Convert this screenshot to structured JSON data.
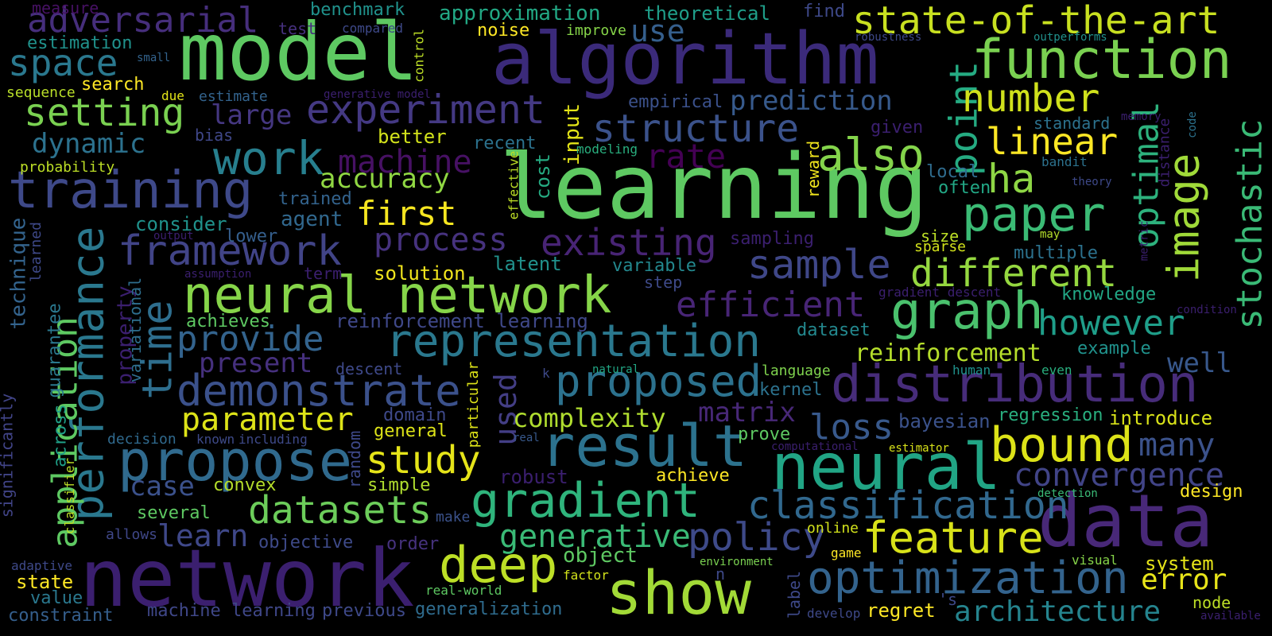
{
  "palette": {
    "background": "#000000"
  },
  "words": [
    {
      "text": "learning",
      "color": "#5ec962"
    },
    {
      "text": "model",
      "color": "#5ec962"
    },
    {
      "text": "algorithm",
      "color": "#3b2a7a"
    },
    {
      "text": "network",
      "color": "#3b1f6f"
    },
    {
      "text": "data",
      "color": "#482878"
    },
    {
      "text": "neural",
      "color": "#21a585"
    },
    {
      "text": "function",
      "color": "#7ad151"
    },
    {
      "text": "show",
      "color": "#a2da37"
    },
    {
      "text": "neural network",
      "color": "#86d549"
    },
    {
      "text": "result",
      "color": "#2c728e"
    },
    {
      "text": "propose",
      "color": "#306a8e"
    },
    {
      "text": "state-of-the-art",
      "color": "#c8e020"
    },
    {
      "text": "training",
      "color": "#3e4989"
    },
    {
      "text": "distribution",
      "color": "#472c7a"
    },
    {
      "text": "representation",
      "color": "#2a788e"
    },
    {
      "text": "optimization",
      "color": "#33638d"
    },
    {
      "text": "performance",
      "color": "#2a788e"
    },
    {
      "text": "gradient",
      "color": "#2fb47c"
    },
    {
      "text": "bound",
      "color": "#dde318"
    },
    {
      "text": "graph",
      "color": "#4ac16d"
    },
    {
      "text": "paper",
      "color": "#3bbb75"
    },
    {
      "text": "deep",
      "color": "#bddf26"
    },
    {
      "text": "experiment",
      "color": "#443983"
    },
    {
      "text": "image",
      "color": "#a0da39"
    },
    {
      "text": "proposed",
      "color": "#2c728e"
    },
    {
      "text": "demonstrate",
      "color": "#3b518b"
    },
    {
      "text": "time",
      "color": "#2e6e8e"
    },
    {
      "text": "framework",
      "color": "#414487"
    },
    {
      "text": "work",
      "color": "#277f8e"
    },
    {
      "text": "classification",
      "color": "#31688e"
    },
    {
      "text": "application",
      "color": "#5ec962"
    },
    {
      "text": "datasets",
      "color": "#6ccd5a"
    },
    {
      "text": "feature",
      "color": "#d8e219"
    },
    {
      "text": "structure",
      "color": "#3b528b"
    },
    {
      "text": "policy",
      "color": "#3e4a89"
    },
    {
      "text": "sample",
      "color": "#3f4788"
    },
    {
      "text": "point",
      "color": "#25ab82"
    },
    {
      "text": "different",
      "color": "#95d840"
    },
    {
      "text": "study",
      "color": "#e5e419"
    },
    {
      "text": "space",
      "color": "#2a788e"
    },
    {
      "text": "setting",
      "color": "#7ad151"
    },
    {
      "text": "also",
      "color": "#84d44b"
    },
    {
      "text": "however",
      "color": "#1f9e89"
    },
    {
      "text": "convergence",
      "color": "#414487"
    },
    {
      "text": "efficient",
      "color": "#482576"
    },
    {
      "text": "stochastic",
      "color": "#3aba76"
    },
    {
      "text": "number",
      "color": "#d0e11c"
    },
    {
      "text": "ha",
      "color": "#8ed645"
    },
    {
      "text": "existing",
      "color": "#482475"
    },
    {
      "text": "linear",
      "color": "#fde725"
    },
    {
      "text": "optimal",
      "color": "#2db27d"
    },
    {
      "text": "parameter",
      "color": "#dde318"
    },
    {
      "text": "adversarial",
      "color": "#462e7c"
    },
    {
      "text": "process",
      "color": "#46327e"
    },
    {
      "text": "provide",
      "color": "#33638d"
    },
    {
      "text": "first",
      "color": "#f6e620"
    },
    {
      "text": "generative",
      "color": "#3aba76"
    },
    {
      "text": "loss",
      "color": "#38598c"
    },
    {
      "text": "used",
      "color": "#433e85"
    },
    {
      "text": "machine",
      "color": "#471164"
    },
    {
      "text": "rate",
      "color": "#440154"
    },
    {
      "text": "many",
      "color": "#3b528b"
    },
    {
      "text": "dynamic",
      "color": "#2c728e"
    },
    {
      "text": "reinforcement",
      "color": "#b5de2b"
    },
    {
      "text": "accuracy",
      "color": "#90d743"
    },
    {
      "text": "large",
      "color": "#453781"
    },
    {
      "text": "prediction",
      "color": "#375a8c"
    },
    {
      "text": "use",
      "color": "#355f8d"
    },
    {
      "text": "complexity",
      "color": "#b0dd2f"
    },
    {
      "text": "error",
      "color": "#e7e419"
    },
    {
      "text": "matrix",
      "color": "#482878"
    },
    {
      "text": "architecture",
      "color": "#25848e"
    },
    {
      "text": "case",
      "color": "#3b518b"
    },
    {
      "text": "learn",
      "color": "#3f4889"
    },
    {
      "text": "present",
      "color": "#46307e"
    },
    {
      "text": "well",
      "color": "#38588c"
    },
    {
      "text": "approximation",
      "color": "#22a884"
    },
    {
      "text": "system",
      "color": "#e5e419"
    },
    {
      "text": "agent",
      "color": "#31688e"
    },
    {
      "text": "object",
      "color": "#5ec962"
    },
    {
      "text": "input",
      "color": "#e3e418"
    },
    {
      "text": "cost",
      "color": "#25ab82"
    },
    {
      "text": "technique",
      "color": "#33638d"
    },
    {
      "text": "property",
      "color": "#3b1f6f"
    },
    {
      "text": "variational",
      "color": "#2e6e8e"
    },
    {
      "text": "guarantee",
      "color": "#2a788e"
    },
    {
      "text": "across",
      "color": "#1fa088"
    },
    {
      "text": "significantly",
      "color": "#414487"
    },
    {
      "text": "better",
      "color": "#d2e21b"
    },
    {
      "text": "solution",
      "color": "#f1e51d"
    },
    {
      "text": "reinforcement learning",
      "color": "#3f4889"
    },
    {
      "text": "lower",
      "color": "#355f8d"
    },
    {
      "text": "consider",
      "color": "#20928c"
    },
    {
      "text": "trained",
      "color": "#33638d"
    },
    {
      "text": "dataset",
      "color": "#23888e"
    },
    {
      "text": "kernel",
      "color": "#2c728e"
    },
    {
      "text": "language",
      "color": "#7fd34e"
    },
    {
      "text": "regression",
      "color": "#29af7f"
    },
    {
      "text": "introduce",
      "color": "#d8e219"
    },
    {
      "text": "example",
      "color": "#20928c"
    },
    {
      "text": "bayesian",
      "color": "#3b528b"
    },
    {
      "text": "prove",
      "color": "#5ec962"
    },
    {
      "text": "domain",
      "color": "#3e4989"
    },
    {
      "text": "general",
      "color": "#dde318"
    },
    {
      "text": "convex",
      "color": "#b5de2b"
    },
    {
      "text": "simple",
      "color": "#b0dd2f"
    },
    {
      "text": "several",
      "color": "#5ec962"
    },
    {
      "text": "objective",
      "color": "#3e4a89"
    },
    {
      "text": "order",
      "color": "#46327e"
    },
    {
      "text": "generalization",
      "color": "#2f6c8e"
    },
    {
      "text": "previous",
      "color": "#3e4989"
    },
    {
      "text": "machine learning",
      "color": "#3f4788"
    },
    {
      "text": "state",
      "color": "#fde725"
    },
    {
      "text": "value",
      "color": "#2a788e"
    },
    {
      "text": "constraint",
      "color": "#355f8d"
    },
    {
      "text": "adaptive",
      "color": "#3e4989"
    },
    {
      "text": "allows",
      "color": "#3f4788"
    },
    {
      "text": "decision",
      "color": "#306a8e"
    },
    {
      "text": "known",
      "color": "#3e4a89"
    },
    {
      "text": "including",
      "color": "#3e4989"
    },
    {
      "text": "classifier",
      "color": "#bddf26"
    },
    {
      "text": "random",
      "color": "#3e4989"
    },
    {
      "text": "particular",
      "color": "#dde318"
    },
    {
      "text": "make",
      "color": "#3b528b"
    },
    {
      "text": "real",
      "color": "#38598c"
    },
    {
      "text": "robust",
      "color": "#3b1f6f"
    },
    {
      "text": "achieve",
      "color": "#fde725"
    },
    {
      "text": "descent",
      "color": "#3e4989"
    },
    {
      "text": "achieves",
      "color": "#5ec962"
    },
    {
      "text": "term",
      "color": "#3b1f6f"
    },
    {
      "text": "latent",
      "color": "#21918c"
    },
    {
      "text": "variable",
      "color": "#23888e"
    },
    {
      "text": "step",
      "color": "#3e4a89"
    },
    {
      "text": "sampling",
      "color": "#3b1f6f"
    },
    {
      "text": "size",
      "color": "#bddf26"
    },
    {
      "text": "sparse",
      "color": "#d2e21b"
    },
    {
      "text": "multiple",
      "color": "#2c728e"
    },
    {
      "text": "knowledge",
      "color": "#22a785"
    },
    {
      "text": "gradient descent",
      "color": "#3b1f6f"
    },
    {
      "text": "local",
      "color": "#2f6c8e"
    },
    {
      "text": "often",
      "color": "#22a785"
    },
    {
      "text": "reward",
      "color": "#f1e51d"
    },
    {
      "text": "given",
      "color": "#3b1f6f"
    },
    {
      "text": "empirical",
      "color": "#3b518b"
    },
    {
      "text": "recent",
      "color": "#2c728e"
    },
    {
      "text": "modeling",
      "color": "#29af7f"
    },
    {
      "text": "effective",
      "color": "#bddf26"
    },
    {
      "text": "benchmark",
      "color": "#20928c"
    },
    {
      "text": "theoretical",
      "color": "#1f9e89"
    },
    {
      "text": "find",
      "color": "#3e4989"
    },
    {
      "text": "noise",
      "color": "#fde725"
    },
    {
      "text": "improve",
      "color": "#86d549"
    },
    {
      "text": "compared",
      "color": "#3e4989"
    },
    {
      "text": "control",
      "color": "#bddf26"
    },
    {
      "text": "test",
      "color": "#46307e"
    },
    {
      "text": "measure",
      "color": "#471164"
    },
    {
      "text": "estimation",
      "color": "#20928c"
    },
    {
      "text": "small",
      "color": "#33638d"
    },
    {
      "text": "sequence",
      "color": "#b8de29"
    },
    {
      "text": "search",
      "color": "#fde725"
    },
    {
      "text": "due",
      "color": "#e3e418"
    },
    {
      "text": "estimate",
      "color": "#33638d"
    },
    {
      "text": "generative model",
      "color": "#3b1f6f"
    },
    {
      "text": "bias",
      "color": "#3f4788"
    },
    {
      "text": "probability",
      "color": "#bddf26"
    },
    {
      "text": "output",
      "color": "#3b1f6f"
    },
    {
      "text": "learned",
      "color": "#3e4989"
    },
    {
      "text": "assumption",
      "color": "#3b1f6f"
    },
    {
      "text": "robustness",
      "color": "#3e4989"
    },
    {
      "text": "outperforms",
      "color": "#21918c"
    },
    {
      "text": "memory",
      "color": "#3b1f6f"
    },
    {
      "text": "standard",
      "color": "#2c728e"
    },
    {
      "text": "code",
      "color": "#2c728e"
    },
    {
      "text": "distance",
      "color": "#3b1f6f"
    },
    {
      "text": "bandit",
      "color": "#2c728e"
    },
    {
      "text": "theory",
      "color": "#3e4989"
    },
    {
      "text": "may",
      "color": "#b5de2b"
    },
    {
      "text": "metric",
      "color": "#3b1f6f"
    },
    {
      "text": "condition",
      "color": "#3b1f6f"
    },
    {
      "text": "human",
      "color": "#20928c"
    },
    {
      "text": "even",
      "color": "#29af7f"
    },
    {
      "text": "natural",
      "color": "#22a785"
    },
    {
      "text": "k",
      "color": "#3e4989"
    },
    {
      "text": "computational",
      "color": "#3b1f6f"
    },
    {
      "text": "estimator",
      "color": "#d8e219"
    },
    {
      "text": "detection",
      "color": "#3aba76"
    },
    {
      "text": "design",
      "color": "#fde725"
    },
    {
      "text": "online",
      "color": "#d2e21b"
    },
    {
      "text": "game",
      "color": "#fde725"
    },
    {
      "text": "environment",
      "color": "#7ad151"
    },
    {
      "text": "visual",
      "color": "#86d549"
    },
    {
      "text": "n",
      "color": "#3e4989"
    },
    {
      "text": "factor",
      "color": "#d2e21b"
    },
    {
      "text": "real-world",
      "color": "#5ec962"
    },
    {
      "text": "label",
      "color": "#3e4989"
    },
    {
      "text": "develop",
      "color": "#3e4989"
    },
    {
      "text": "regret",
      "color": "#fde725"
    },
    {
      "text": "'s",
      "color": "#3e4989"
    },
    {
      "text": "node",
      "color": "#bddf26"
    },
    {
      "text": "available",
      "color": "#3b1f6f"
    }
  ]
}
